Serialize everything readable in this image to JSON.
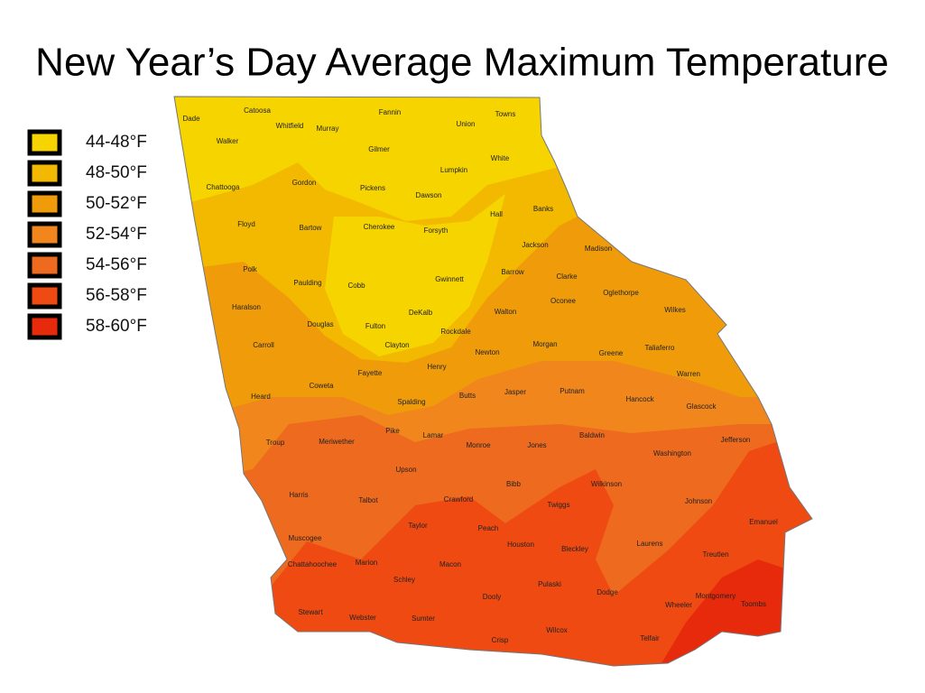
{
  "title": "New Year’s Day Average Maximum Temperature",
  "legend": [
    {
      "label": "44-48°F",
      "color": "#f5d400"
    },
    {
      "label": "48-50°F",
      "color": "#f2b900"
    },
    {
      "label": "50-52°F",
      "color": "#f09c0a"
    },
    {
      "label": "52-54°F",
      "color": "#f0861c"
    },
    {
      "label": "54-56°F",
      "color": "#ee6a1e"
    },
    {
      "label": "56-58°F",
      "color": "#ee4a12"
    },
    {
      "label": "58-60°F",
      "color": "#e82a0c"
    }
  ],
  "counties": [
    "Dade",
    "Catoosa",
    "Fannin",
    "Towns",
    "Union",
    "Whitfield",
    "Murray",
    "Walker",
    "White",
    "Gilmer",
    "Lumpkin",
    "Chattooga",
    "Gordon",
    "Pickens",
    "Dawson",
    "Hall",
    "Banks",
    "Floyd",
    "Bartow",
    "Cherokee",
    "Forsyth",
    "Jackson",
    "Madison",
    "Polk",
    "Paulding",
    "Cobb",
    "Gwinnett",
    "Barrow",
    "Clarke",
    "Oglethorpe",
    "Oconee",
    "Haralson",
    "Douglas",
    "Fulton",
    "DeKalb",
    "Walton",
    "Wilkes",
    "Rockdale",
    "Carroll",
    "Clayton",
    "Newton",
    "Morgan",
    "Greene",
    "Taliaferro",
    "Henry",
    "Fayette",
    "Warren",
    "Coweta",
    "Heard",
    "Spalding",
    "Butts",
    "Jasper",
    "Putnam",
    "Hancock",
    "Glascock",
    "Pike",
    "Lamar",
    "Troup",
    "Meriwether",
    "Monroe",
    "Jones",
    "Baldwin",
    "Jefferson",
    "Washington",
    "Upson",
    "Bibb",
    "Wilkinson",
    "Harris",
    "Talbot",
    "Crawford",
    "Twiggs",
    "Johnson",
    "Emanuel",
    "Taylor",
    "Peach",
    "Houston",
    "Bleckley",
    "Laurens",
    "Treutlen",
    "Muscogee",
    "Chattahoochee",
    "Marion",
    "Macon",
    "Schley",
    "Pulaski",
    "Dodge",
    "Montgomery",
    "Wheeler",
    "Toombs",
    "Dooly",
    "Stewart",
    "Webster",
    "Sumter",
    "Crisp",
    "Wilcox",
    "Telfair"
  ]
}
